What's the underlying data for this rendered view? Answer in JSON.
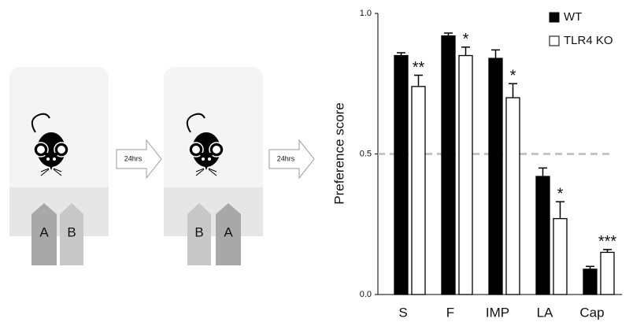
{
  "diagram": {
    "panels": [
      {
        "left": "A",
        "right": "B"
      },
      {
        "left": "B",
        "right": "A"
      }
    ],
    "arrows": [
      "24hrs",
      "24hrs"
    ]
  },
  "chart_data": {
    "type": "bar",
    "ylabel": "Preference score",
    "categories": [
      "S",
      "F",
      "IMP",
      "LA",
      "Cap"
    ],
    "series": [
      {
        "name": "WT",
        "color": "#000000",
        "values": [
          0.85,
          0.92,
          0.84,
          0.42,
          0.09
        ],
        "errors": [
          0.01,
          0.01,
          0.03,
          0.03,
          0.01
        ]
      },
      {
        "name": "TLR4 KO",
        "color": "#ffffff",
        "values": [
          0.74,
          0.85,
          0.7,
          0.27,
          0.15
        ],
        "errors": [
          0.04,
          0.03,
          0.05,
          0.06,
          0.01
        ],
        "annotations": [
          "**",
          "*",
          "*",
          "*",
          "***"
        ]
      }
    ],
    "reference_line": 0.5,
    "ylim": [
      0,
      1
    ],
    "yticks": [
      {
        "value": 0,
        "label": "0.0"
      },
      {
        "value": 0.5,
        "label": "0.5"
      },
      {
        "value": 1,
        "label": "1.0"
      }
    ],
    "legend": "upper right",
    "grid": false
  }
}
